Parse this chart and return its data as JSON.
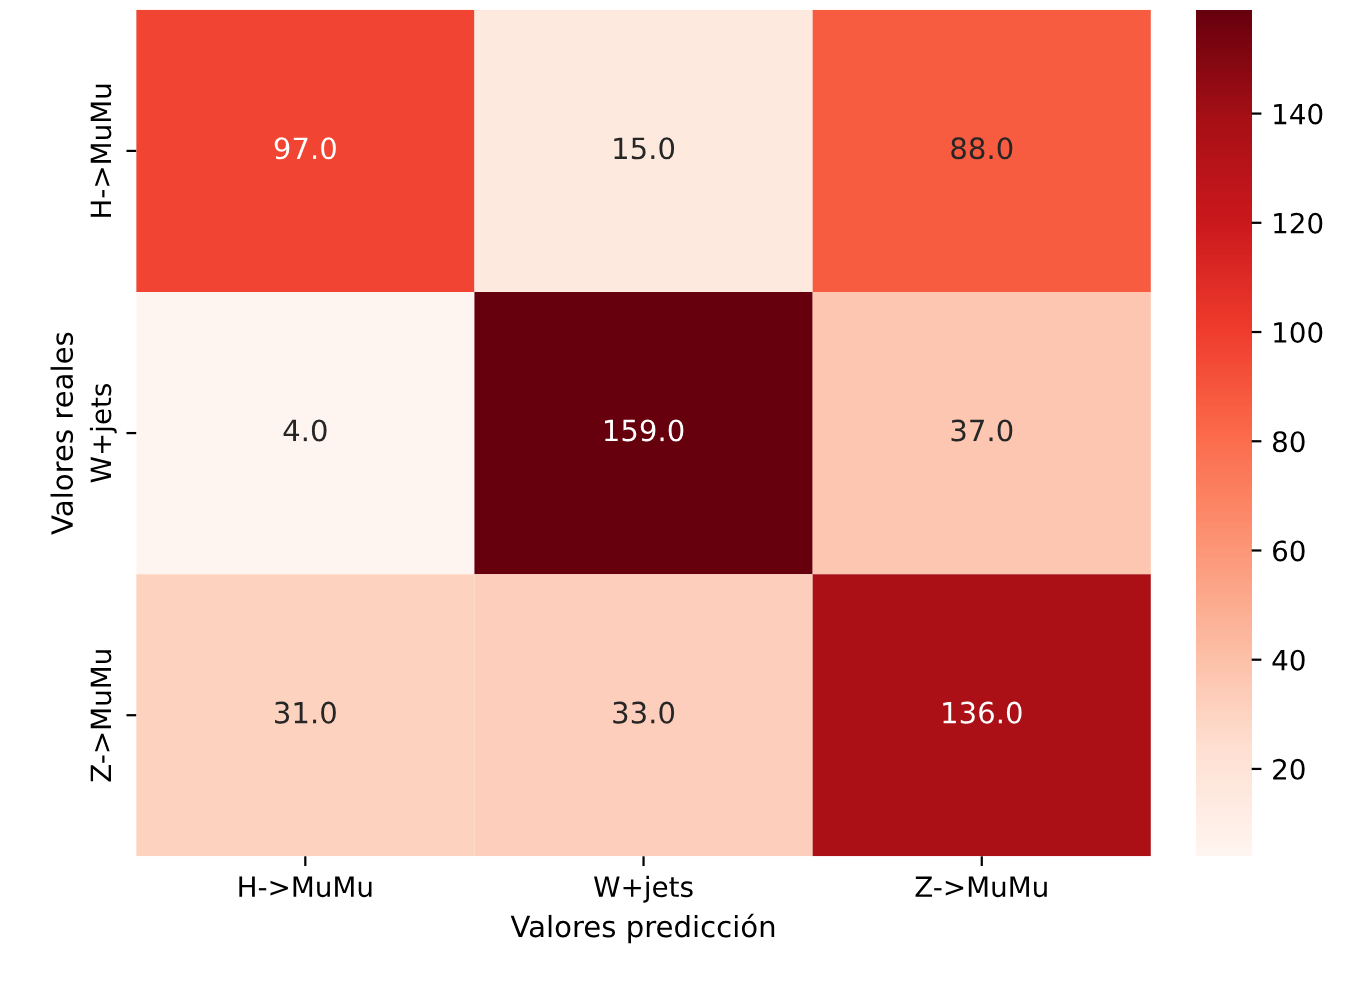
{
  "chart_data": {
    "type": "heatmap",
    "xlabel": "Valores predicción",
    "ylabel": "Valores reales",
    "categories": [
      "H->MuMu",
      "W+jets",
      "Z->MuMu"
    ],
    "y_categories": [
      "H->MuMu",
      "W+jets",
      "Z->MuMu"
    ],
    "cells": [
      [
        97,
        15,
        88
      ],
      [
        4,
        159,
        37
      ],
      [
        31,
        33,
        136
      ]
    ],
    "cell_labels": [
      [
        "97.0",
        "15.0",
        "88.0"
      ],
      [
        "4.0",
        "159.0",
        "37.0"
      ],
      [
        "31.0",
        "33.0",
        "136.0"
      ]
    ],
    "clim": [
      4,
      159
    ],
    "cticks": [
      20,
      40,
      60,
      80,
      100,
      120,
      140
    ]
  }
}
